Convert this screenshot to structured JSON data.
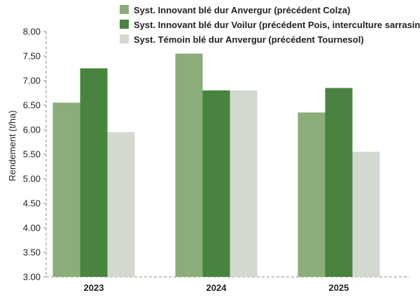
{
  "chart_data": {
    "type": "bar",
    "title": "",
    "xlabel": "",
    "ylabel": "Rendement (t/ha)",
    "categories": [
      "2023",
      "2024",
      "2025"
    ],
    "ylim": [
      3.0,
      8.0
    ],
    "yticks": [
      "3.00",
      "3.50",
      "4.00",
      "4.50",
      "5.00",
      "5.50",
      "6.00",
      "6.50",
      "7.00",
      "7.50",
      "8.00"
    ],
    "legend_position": "top",
    "grid": false,
    "series": [
      {
        "name": "Syst. Innovant blé dur Anvergur (précédent Colza)",
        "color": "#8bad79",
        "values": [
          6.55,
          7.55,
          6.35
        ]
      },
      {
        "name": "Syst. Innovant blé dur Voilur (précédent Pois, interculture sarrasin)",
        "color": "#48843f",
        "values": [
          7.25,
          6.8,
          6.85
        ]
      },
      {
        "name": "Syst. Témoin blé dur Anvergur (précédent Tournesol)",
        "color": "#d4d9cf",
        "values": [
          5.95,
          6.8,
          5.55
        ]
      }
    ]
  }
}
